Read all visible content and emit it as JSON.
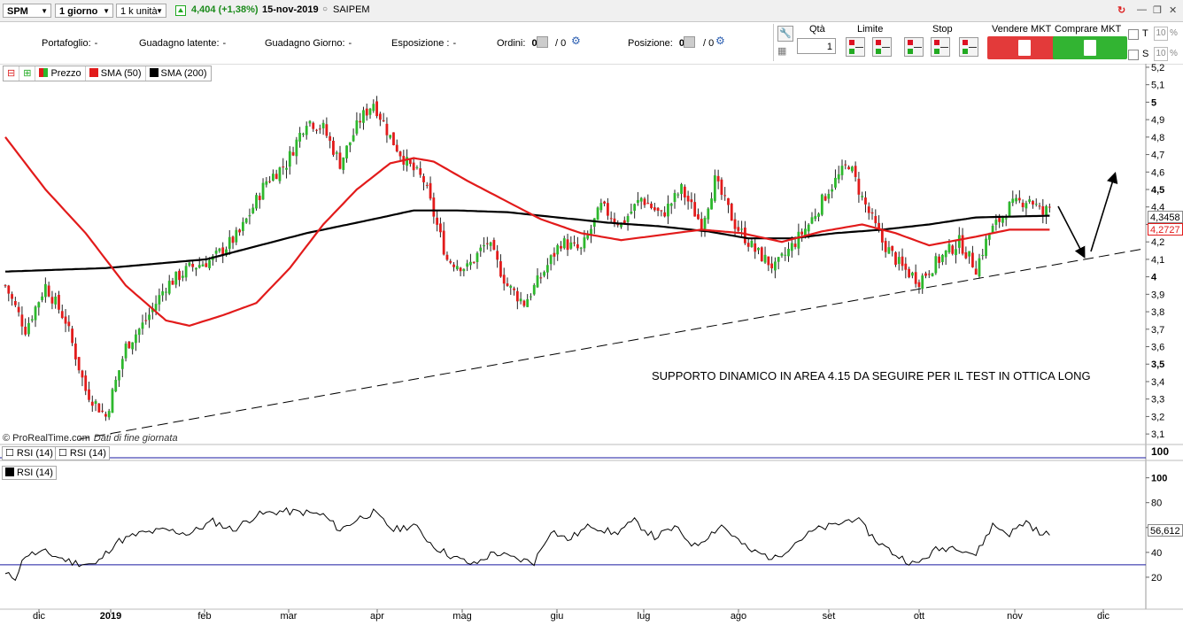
{
  "toolbar": {
    "symbol": "SPM",
    "timeframe": "1 giorno",
    "units": "1 k unità",
    "quote": "4,404 (+1,38%)",
    "date": "15-nov-2019",
    "name": "SAIPEM"
  },
  "portfolio": {
    "portafoglio_label": "Portafoglio:",
    "portafoglio_value": "-",
    "guadagno_latente_label": "Guadagno latente:",
    "guadagno_latente_value": "-",
    "guadagno_giorno_label": "Guadagno Giorno:",
    "guadagno_giorno_value": "-",
    "esposizione_label": "Esposizione :",
    "esposizione_value": "-",
    "ordini_label": "Ordini:",
    "ordini_a": "0",
    "ordini_b": "/ 0",
    "posizione_label": "Posizione:",
    "posizione_a": "0",
    "posizione_b": "/ 0"
  },
  "order_panel": {
    "qta_label": "Qtà",
    "qta_value": "1",
    "limite_label": "Limite",
    "stop_label": "Stop",
    "sell_label": "Vendere MKT",
    "buy_label": "Comprare MKT",
    "t_label": "T",
    "s_label": "S",
    "t_pct": "10",
    "s_pct": "10"
  },
  "legend": {
    "price": "Prezzo",
    "sma50": "SMA (50)",
    "sma200": "SMA (200)"
  },
  "rsi": {
    "tab1": "RSI (14)",
    "tab2": "RSI (14)",
    "legend": "RSI (14)",
    "top_label": "100"
  },
  "footer": {
    "copyright": "© ProRealTime.com",
    "note": "Dati di fine giornata"
  },
  "annotation": "SUPPORTO DINAMICO IN AREA 4.15 DA SEGUIRE PER IL TEST IN OTTICA LONG",
  "colors": {
    "up": "#2db82d",
    "down": "#e21b1b",
    "sma50": "#e21b1b",
    "sma200": "#000000",
    "rsi_level": "#1a1aa0"
  },
  "chart_data": {
    "type": "candlestick",
    "price_axis": {
      "min": 3.05,
      "max": 5.22,
      "ticks": [
        "5,2",
        "5,1",
        "5",
        "4,9",
        "4,8",
        "4,7",
        "4,6",
        "4,5",
        "4,4",
        "4,3",
        "4,2",
        "4,1",
        "4",
        "3,9",
        "3,8",
        "3,7",
        "3,6",
        "3,5",
        "3,4",
        "3,3",
        "3,2",
        "3,1"
      ],
      "tick_values": [
        5.2,
        5.1,
        5.0,
        4.9,
        4.8,
        4.7,
        4.6,
        4.5,
        4.4,
        4.3,
        4.2,
        4.1,
        4.0,
        3.9,
        3.8,
        3.7,
        3.6,
        3.5,
        3.4,
        3.3,
        3.2,
        3.1
      ],
      "bold_ticks": [
        "5",
        "4,5",
        "4",
        "3,5"
      ]
    },
    "x_labels": [
      "dic",
      "2019",
      "feb",
      "mar",
      "apr",
      "mag",
      "giu",
      "lug",
      "ago",
      "set",
      "ott",
      "nov",
      "dic"
    ],
    "sma200_last": "4,3458",
    "sma50_last": "4,2727",
    "price_keypoints": [
      [
        0,
        3.95
      ],
      [
        6,
        3.7
      ],
      [
        12,
        3.95
      ],
      [
        18,
        3.75
      ],
      [
        24,
        3.35
      ],
      [
        30,
        3.2
      ],
      [
        36,
        3.6
      ],
      [
        42,
        3.75
      ],
      [
        48,
        3.95
      ],
      [
        55,
        4.05
      ],
      [
        62,
        4.1
      ],
      [
        70,
        4.25
      ],
      [
        78,
        4.55
      ],
      [
        84,
        4.65
      ],
      [
        90,
        4.9
      ],
      [
        95,
        4.85
      ],
      [
        100,
        4.65
      ],
      [
        106,
        4.9
      ],
      [
        110,
        5.0
      ],
      [
        115,
        4.8
      ],
      [
        120,
        4.65
      ],
      [
        125,
        4.55
      ],
      [
        132,
        4.1
      ],
      [
        138,
        4.05
      ],
      [
        144,
        4.2
      ],
      [
        150,
        3.95
      ],
      [
        155,
        3.85
      ],
      [
        160,
        4.0
      ],
      [
        166,
        4.2
      ],
      [
        172,
        4.15
      ],
      [
        178,
        4.4
      ],
      [
        184,
        4.3
      ],
      [
        190,
        4.45
      ],
      [
        196,
        4.35
      ],
      [
        202,
        4.5
      ],
      [
        208,
        4.3
      ],
      [
        212,
        4.55
      ],
      [
        218,
        4.3
      ],
      [
        224,
        4.15
      ],
      [
        230,
        4.05
      ],
      [
        236,
        4.2
      ],
      [
        240,
        4.3
      ],
      [
        246,
        4.5
      ],
      [
        252,
        4.65
      ],
      [
        256,
        4.45
      ],
      [
        262,
        4.2
      ],
      [
        268,
        4.05
      ],
      [
        273,
        3.98
      ],
      [
        279,
        4.1
      ],
      [
        285,
        4.2
      ],
      [
        290,
        4.05
      ],
      [
        294,
        4.25
      ],
      [
        300,
        4.4
      ],
      [
        306,
        4.45
      ],
      [
        310,
        4.36
      ],
      [
        312,
        4.4
      ]
    ],
    "sma50_keypoints": [
      [
        0,
        4.8
      ],
      [
        12,
        4.5
      ],
      [
        24,
        4.25
      ],
      [
        36,
        3.95
      ],
      [
        48,
        3.75
      ],
      [
        55,
        3.72
      ],
      [
        65,
        3.78
      ],
      [
        75,
        3.85
      ],
      [
        85,
        4.05
      ],
      [
        95,
        4.3
      ],
      [
        105,
        4.5
      ],
      [
        115,
        4.65
      ],
      [
        122,
        4.68
      ],
      [
        128,
        4.66
      ],
      [
        138,
        4.55
      ],
      [
        148,
        4.45
      ],
      [
        160,
        4.33
      ],
      [
        172,
        4.25
      ],
      [
        184,
        4.21
      ],
      [
        196,
        4.24
      ],
      [
        208,
        4.27
      ],
      [
        220,
        4.25
      ],
      [
        232,
        4.2
      ],
      [
        244,
        4.26
      ],
      [
        256,
        4.3
      ],
      [
        266,
        4.25
      ],
      [
        276,
        4.18
      ],
      [
        290,
        4.23
      ],
      [
        300,
        4.27
      ],
      [
        312,
        4.27
      ]
    ],
    "sma200_keypoints": [
      [
        0,
        4.03
      ],
      [
        30,
        4.05
      ],
      [
        60,
        4.1
      ],
      [
        90,
        4.25
      ],
      [
        110,
        4.33
      ],
      [
        122,
        4.38
      ],
      [
        135,
        4.38
      ],
      [
        150,
        4.37
      ],
      [
        165,
        4.34
      ],
      [
        180,
        4.31
      ],
      [
        195,
        4.29
      ],
      [
        210,
        4.26
      ],
      [
        222,
        4.22
      ],
      [
        235,
        4.22
      ],
      [
        248,
        4.25
      ],
      [
        262,
        4.27
      ],
      [
        276,
        4.3
      ],
      [
        290,
        4.34
      ],
      [
        312,
        4.35
      ]
    ],
    "support_line": {
      "from": {
        "x_index": 22,
        "price": 3.07
      },
      "to": {
        "x_index": 340,
        "price": 4.16
      }
    },
    "rsi_axis": {
      "ticks": [
        "100",
        "80",
        "60",
        "40",
        "20"
      ],
      "tick_values": [
        100,
        80,
        60,
        40,
        20
      ],
      "level": 30,
      "last": "56,612"
    },
    "rsi_keypoints": [
      [
        0,
        22
      ],
      [
        3,
        20
      ],
      [
        6,
        38
      ],
      [
        12,
        40
      ],
      [
        20,
        32
      ],
      [
        27,
        30
      ],
      [
        33,
        48
      ],
      [
        40,
        55
      ],
      [
        48,
        58
      ],
      [
        55,
        55
      ],
      [
        62,
        65
      ],
      [
        68,
        58
      ],
      [
        75,
        70
      ],
      [
        82,
        73
      ],
      [
        90,
        72
      ],
      [
        95,
        70
      ],
      [
        100,
        58
      ],
      [
        106,
        68
      ],
      [
        110,
        72
      ],
      [
        116,
        58
      ],
      [
        122,
        62
      ],
      [
        128,
        45
      ],
      [
        134,
        36
      ],
      [
        140,
        30
      ],
      [
        146,
        40
      ],
      [
        152,
        35
      ],
      [
        158,
        32
      ],
      [
        163,
        58
      ],
      [
        168,
        50
      ],
      [
        175,
        62
      ],
      [
        182,
        55
      ],
      [
        188,
        65
      ],
      [
        194,
        52
      ],
      [
        200,
        60
      ],
      [
        206,
        45
      ],
      [
        214,
        62
      ],
      [
        222,
        42
      ],
      [
        230,
        35
      ],
      [
        236,
        48
      ],
      [
        242,
        58
      ],
      [
        248,
        62
      ],
      [
        254,
        68
      ],
      [
        260,
        50
      ],
      [
        266,
        38
      ],
      [
        272,
        30
      ],
      [
        278,
        42
      ],
      [
        284,
        45
      ],
      [
        290,
        38
      ],
      [
        295,
        62
      ],
      [
        300,
        55
      ],
      [
        305,
        65
      ],
      [
        310,
        53
      ],
      [
        312,
        56.6
      ]
    ]
  }
}
